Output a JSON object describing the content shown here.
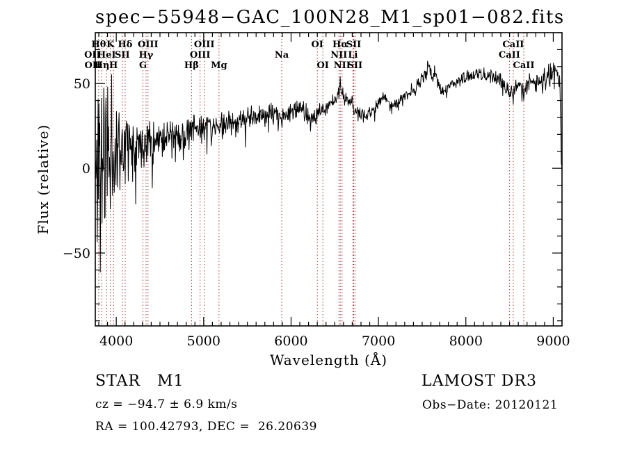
{
  "title": "spec−55948−GAC_100N28_M1_sp01−082.fits",
  "colors": {
    "background": "#ffffff",
    "spectrum": "#000000",
    "marker_line": "#9e3434",
    "frame": "#000000",
    "text": "#000000"
  },
  "axes": {
    "xlabel": "Wavelength (Å)",
    "ylabel": "Flux (relative)"
  },
  "footer": {
    "class_label": "STAR   M1",
    "survey": "LAMOST DR3",
    "cz": "cz = −94.7 ± 6.9 km/s",
    "obs_date": "Obs−Date: 20120121",
    "coords": "RA = 100.42793, DEC =  26.20639"
  },
  "chart_data": {
    "type": "line",
    "title": "spec−55948−GAC_100N28_M1_sp01−082.fits",
    "xlabel": "Wavelength (Å)",
    "ylabel": "Flux (relative)",
    "xlim": [
      3760,
      9100
    ],
    "ylim": [
      -93,
      80
    ],
    "x_ticks": [
      4000,
      5000,
      6000,
      7000,
      8000,
      9000
    ],
    "y_ticks": [
      -50,
      0,
      50
    ],
    "x_minor_step": 100,
    "y_minor_step": 10,
    "grid": false,
    "legend_position": "none",
    "series": [
      {
        "name": "spectrum-flux-relative",
        "color": "#000000",
        "sample_step_angstrom": 5,
        "noise_seed": 11,
        "continuum_points": [
          [
            3762,
            -5
          ],
          [
            3790,
            2
          ],
          [
            3830,
            6
          ],
          [
            3880,
            10
          ],
          [
            3930,
            12
          ],
          [
            3980,
            13
          ],
          [
            4050,
            14
          ],
          [
            4150,
            15
          ],
          [
            4250,
            16
          ],
          [
            4350,
            17
          ],
          [
            4450,
            18
          ],
          [
            4550,
            18.5
          ],
          [
            4650,
            19.5
          ],
          [
            4750,
            20
          ],
          [
            4830,
            22
          ],
          [
            4900,
            23
          ],
          [
            5000,
            25
          ],
          [
            5080,
            26
          ],
          [
            5170,
            24
          ],
          [
            5250,
            26.5
          ],
          [
            5350,
            28
          ],
          [
            5450,
            29
          ],
          [
            5550,
            30
          ],
          [
            5650,
            31
          ],
          [
            5750,
            32
          ],
          [
            5850,
            32
          ],
          [
            5940,
            32
          ],
          [
            6050,
            34
          ],
          [
            6150,
            34.5
          ],
          [
            6180,
            32
          ],
          [
            6240,
            29
          ],
          [
            6300,
            31
          ],
          [
            6400,
            36
          ],
          [
            6480,
            40
          ],
          [
            6540,
            44
          ],
          [
            6570,
            47
          ],
          [
            6620,
            41
          ],
          [
            6680,
            38
          ],
          [
            6760,
            33
          ],
          [
            6860,
            31.5
          ],
          [
            6950,
            34.5
          ],
          [
            7050,
            43
          ],
          [
            7120,
            39.5
          ],
          [
            7180,
            37.5
          ],
          [
            7280,
            42
          ],
          [
            7400,
            46
          ],
          [
            7500,
            52
          ],
          [
            7580,
            60
          ],
          [
            7615,
            53
          ],
          [
            7645,
            57
          ],
          [
            7700,
            47.5
          ],
          [
            7760,
            45
          ],
          [
            7830,
            50
          ],
          [
            7920,
            52
          ],
          [
            8020,
            53.5
          ],
          [
            8120,
            55
          ],
          [
            8220,
            56
          ],
          [
            8320,
            54
          ],
          [
            8400,
            51.5
          ],
          [
            8470,
            46.5
          ],
          [
            8540,
            45.5
          ],
          [
            8610,
            49.5
          ],
          [
            8662,
            46
          ],
          [
            8720,
            50
          ],
          [
            8800,
            52
          ],
          [
            8900,
            53
          ],
          [
            9000,
            54.5
          ],
          [
            9055,
            56
          ],
          [
            9075,
            50
          ],
          [
            9090,
            10
          ],
          [
            9100,
            -3
          ]
        ],
        "noise_amplitude": [
          [
            3762,
            62
          ],
          [
            3800,
            65
          ],
          [
            3840,
            58
          ],
          [
            3890,
            52
          ],
          [
            3940,
            34
          ],
          [
            4000,
            26
          ],
          [
            4060,
            21
          ],
          [
            4120,
            18
          ],
          [
            4220,
            15
          ],
          [
            4320,
            13
          ],
          [
            4420,
            11.5
          ],
          [
            4520,
            10.5
          ],
          [
            4620,
            9.5
          ],
          [
            4720,
            9
          ],
          [
            4820,
            8.5
          ],
          [
            4920,
            8
          ],
          [
            5020,
            7.5
          ],
          [
            5150,
            7
          ],
          [
            5300,
            6.5
          ],
          [
            5500,
            6
          ],
          [
            5700,
            5.5
          ],
          [
            5900,
            5
          ],
          [
            6100,
            5
          ],
          [
            6300,
            4.8
          ],
          [
            6500,
            4.6
          ],
          [
            6700,
            4.2
          ],
          [
            6900,
            4
          ],
          [
            7100,
            4
          ],
          [
            7300,
            4
          ],
          [
            7500,
            4
          ],
          [
            7700,
            3.6
          ],
          [
            7900,
            3.8
          ],
          [
            8100,
            4
          ],
          [
            8300,
            4
          ],
          [
            8500,
            4.2
          ],
          [
            8700,
            4.6
          ],
          [
            8800,
            5.5
          ],
          [
            8900,
            6.5
          ],
          [
            9000,
            7.5
          ],
          [
            9060,
            8.5
          ],
          [
            9090,
            4
          ],
          [
            9100,
            2
          ]
        ],
        "features": [
          {
            "wavelength": 4101.7,
            "delta": -9,
            "width": 8
          },
          {
            "wavelength": 4340.5,
            "delta": -9,
            "width": 8
          },
          {
            "wavelength": 4861.3,
            "delta": -10,
            "width": 7
          },
          {
            "wavelength": 5893.0,
            "delta": -10,
            "width": 10
          },
          {
            "wavelength": 6563.0,
            "delta": 9,
            "width": 6
          },
          {
            "wavelength": 6867.0,
            "delta": -5,
            "width": 12
          },
          {
            "wavelength": 8498.0,
            "delta": -7,
            "width": 9
          },
          {
            "wavelength": 8542.0,
            "delta": -8,
            "width": 9
          },
          {
            "wavelength": 8662.0,
            "delta": -8,
            "width": 9
          }
        ]
      }
    ],
    "line_markers": {
      "color": "#9e3434",
      "rows": [
        [
          {
            "label": "Hθ",
            "wavelength": 3798.98
          },
          {
            "label": "K",
            "wavelength": 3933.66
          },
          {
            "label": "Hδ",
            "wavelength": 4101.74
          },
          {
            "label": "OIII",
            "wavelength": 4363.21
          },
          {
            "label": "OIII",
            "wavelength": 5006.84
          },
          {
            "label": "OI",
            "wavelength": 6300.3
          },
          {
            "label": "Hα",
            "wavelength": 6562.8
          },
          {
            "label": "SII",
            "wavelength": 6716.4
          },
          {
            "label": "CaII",
            "wavelength": 8542.09
          }
        ],
        [
          {
            "label": "OII",
            "wavelength": 3727.09
          },
          {
            "label": "HeI",
            "wavelength": 3889.0
          },
          {
            "label": "SII",
            "wavelength": 4068.6
          },
          {
            "label": "Hγ",
            "wavelength": 4340.47
          },
          {
            "label": "OIII",
            "wavelength": 4958.92
          },
          {
            "label": "Na",
            "wavelength": 5892.9
          },
          {
            "label": "NII",
            "wavelength": 6548.0
          },
          {
            "label": "Li",
            "wavelength": 6707.8
          },
          {
            "label": "CaII",
            "wavelength": 8498.02
          }
        ],
        [
          {
            "label": "OII",
            "wavelength": 3729.88
          },
          {
            "label": "Hη",
            "wavelength": 3835.38
          },
          {
            "label": "H",
            "wavelength": 3968.47
          },
          {
            "label": "G",
            "wavelength": 4305.61
          },
          {
            "label": "Hβ",
            "wavelength": 4861.33
          },
          {
            "label": "Mg",
            "wavelength": 5175.3
          },
          {
            "label": "OI",
            "wavelength": 6363.78
          },
          {
            "label": "NII",
            "wavelength": 6583.4
          },
          {
            "label": "SII",
            "wavelength": 6730.8
          },
          {
            "label": "CaII",
            "wavelength": 8662.14
          }
        ]
      ]
    }
  }
}
